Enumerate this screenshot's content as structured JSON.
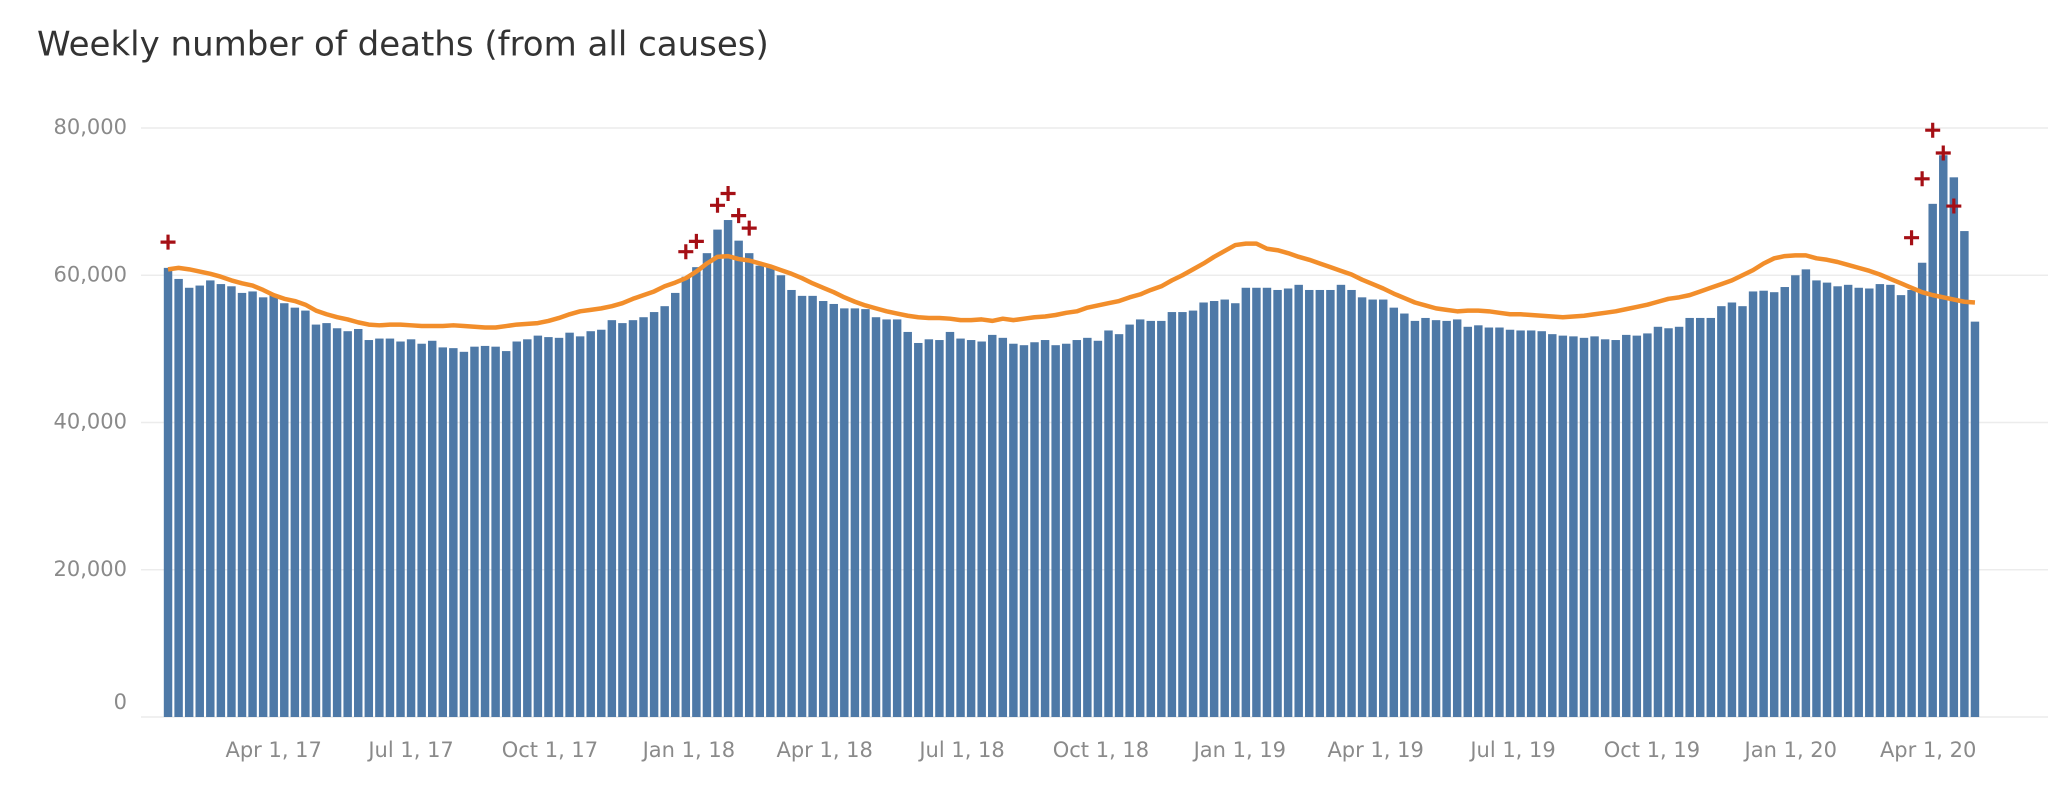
{
  "chart_data": {
    "type": "bar",
    "title": "Weekly number of deaths (from all causes)",
    "x": [
      "2017-01-21",
      "2017-01-28",
      "2017-02-04",
      "2017-02-11",
      "2017-02-18",
      "2017-02-25",
      "2017-03-04",
      "2017-03-11",
      "2017-03-18",
      "2017-03-25",
      "2017-04-01",
      "2017-04-08",
      "2017-04-15",
      "2017-04-22",
      "2017-04-29",
      "2017-05-06",
      "2017-05-13",
      "2017-05-20",
      "2017-05-27",
      "2017-06-03",
      "2017-06-10",
      "2017-06-17",
      "2017-06-24",
      "2017-07-01",
      "2017-07-08",
      "2017-07-15",
      "2017-07-22",
      "2017-07-29",
      "2017-08-05",
      "2017-08-12",
      "2017-08-19",
      "2017-08-26",
      "2017-09-02",
      "2017-09-09",
      "2017-09-16",
      "2017-09-23",
      "2017-09-30",
      "2017-10-07",
      "2017-10-14",
      "2017-10-21",
      "2017-10-28",
      "2017-11-04",
      "2017-11-11",
      "2017-11-18",
      "2017-11-25",
      "2017-12-02",
      "2017-12-09",
      "2017-12-16",
      "2017-12-23",
      "2017-12-30",
      "2018-01-06",
      "2018-01-13",
      "2018-01-20",
      "2018-01-27",
      "2018-02-03",
      "2018-02-10",
      "2018-02-17",
      "2018-02-24",
      "2018-03-03",
      "2018-03-10",
      "2018-03-17",
      "2018-03-24",
      "2018-03-31",
      "2018-04-07",
      "2018-04-14",
      "2018-04-21",
      "2018-04-28",
      "2018-05-05",
      "2018-05-12",
      "2018-05-19",
      "2018-05-26",
      "2018-06-02",
      "2018-06-09",
      "2018-06-16",
      "2018-06-23",
      "2018-06-30",
      "2018-07-07",
      "2018-07-14",
      "2018-07-21",
      "2018-07-28",
      "2018-08-04",
      "2018-08-11",
      "2018-08-18",
      "2018-08-25",
      "2018-09-01",
      "2018-09-08",
      "2018-09-15",
      "2018-09-22",
      "2018-09-29",
      "2018-10-06",
      "2018-10-13",
      "2018-10-20",
      "2018-10-27",
      "2018-11-03",
      "2018-11-10",
      "2018-11-17",
      "2018-11-24",
      "2018-12-01",
      "2018-12-08",
      "2018-12-15",
      "2018-12-22",
      "2018-12-29",
      "2019-01-05",
      "2019-01-12",
      "2019-01-19",
      "2019-01-26",
      "2019-02-02",
      "2019-02-09",
      "2019-02-16",
      "2019-02-23",
      "2019-03-02",
      "2019-03-09",
      "2019-03-16",
      "2019-03-23",
      "2019-03-30",
      "2019-04-06",
      "2019-04-13",
      "2019-04-20",
      "2019-04-27",
      "2019-05-04",
      "2019-05-11",
      "2019-05-18",
      "2019-05-25",
      "2019-06-01",
      "2019-06-08",
      "2019-06-15",
      "2019-06-22",
      "2019-06-29",
      "2019-07-06",
      "2019-07-13",
      "2019-07-20",
      "2019-07-27",
      "2019-08-03",
      "2019-08-10",
      "2019-08-17",
      "2019-08-24",
      "2019-08-31",
      "2019-09-07",
      "2019-09-14",
      "2019-09-21",
      "2019-09-28",
      "2019-10-05",
      "2019-10-12",
      "2019-10-19",
      "2019-10-26",
      "2019-11-02",
      "2019-11-09",
      "2019-11-16",
      "2019-11-23",
      "2019-11-30",
      "2019-12-07",
      "2019-12-14",
      "2019-12-21",
      "2019-12-28",
      "2020-01-04",
      "2020-01-11",
      "2020-01-18",
      "2020-01-25",
      "2020-02-01",
      "2020-02-08",
      "2020-02-15",
      "2020-02-22",
      "2020-02-29",
      "2020-03-07",
      "2020-03-14",
      "2020-03-21",
      "2020-03-28",
      "2020-04-04",
      "2020-04-11",
      "2020-04-18",
      "2020-04-25",
      "2020-05-02"
    ],
    "series": [
      {
        "type": "bar",
        "color": "#4e79a7",
        "values": [
          61000,
          59500,
          58300,
          58600,
          59300,
          58800,
          58500,
          57600,
          57800,
          57000,
          57300,
          56200,
          55600,
          55200,
          53300,
          53500,
          52800,
          52400,
          52700,
          51200,
          51400,
          51400,
          51000,
          51300,
          50700,
          51100,
          50200,
          50100,
          49600,
          50300,
          50400,
          50300,
          49700,
          51000,
          51300,
          51800,
          51600,
          51500,
          52200,
          51700,
          52400,
          52600,
          53900,
          53500,
          53900,
          54300,
          55000,
          55800,
          57600,
          59800,
          61100,
          63000,
          66200,
          67500,
          64700,
          63000,
          61300,
          61200,
          60000,
          58000,
          57200,
          57200,
          56500,
          56100,
          55500,
          55500,
          55400,
          54300,
          54000,
          54000,
          52300,
          50800,
          51300,
          51200,
          52300,
          51400,
          51200,
          51000,
          51900,
          51500,
          50700,
          50500,
          50900,
          51200,
          50500,
          50700,
          51200,
          51500,
          51100,
          52500,
          52000,
          53300,
          54000,
          53800,
          53800,
          55000,
          55000,
          55200,
          56300,
          56500,
          56700,
          56200,
          58300,
          58300,
          58300,
          58000,
          58200,
          58700,
          58000,
          58000,
          58000,
          58700,
          58000,
          57000,
          56700,
          56700,
          55600,
          54800,
          53800,
          54200,
          53900,
          53800,
          54000,
          53000,
          53200,
          52900,
          52900,
          52600,
          52500,
          52500,
          52400,
          52000,
          51800,
          51700,
          51500,
          51700,
          51300,
          51200,
          51900,
          51800,
          52100,
          53000,
          52800,
          53000,
          54200,
          54200,
          54200,
          55800,
          56300,
          55800,
          57800,
          57900,
          57700,
          58400,
          60000,
          60800,
          59300,
          59000,
          58500,
          58700,
          58300,
          58200,
          58800,
          58700,
          57300,
          58000,
          61700,
          69700,
          76300,
          73300,
          66000,
          53700
        ]
      },
      {
        "type": "line",
        "color": "#f28e2b",
        "values": [
          60800,
          61000,
          60800,
          60500,
          60200,
          59800,
          59300,
          58900,
          58600,
          58000,
          57300,
          56800,
          56500,
          56000,
          55200,
          54700,
          54300,
          54000,
          53600,
          53300,
          53200,
          53300,
          53300,
          53200,
          53100,
          53100,
          53100,
          53200,
          53100,
          53000,
          52900,
          52900,
          53100,
          53300,
          53400,
          53500,
          53800,
          54200,
          54700,
          55100,
          55300,
          55500,
          55800,
          56200,
          56800,
          57300,
          57800,
          58500,
          59000,
          59600,
          60500,
          61600,
          62500,
          62600,
          62200,
          62000,
          61600,
          61200,
          60700,
          60200,
          59600,
          58900,
          58300,
          57700,
          57000,
          56400,
          55900,
          55500,
          55100,
          54800,
          54500,
          54300,
          54200,
          54200,
          54100,
          53900,
          53900,
          54000,
          53800,
          54100,
          53900,
          54100,
          54300,
          54400,
          54600,
          54900,
          55100,
          55600,
          55900,
          56200,
          56500,
          57000,
          57400,
          58000,
          58500,
          59300,
          60000,
          60800,
          61600,
          62500,
          63300,
          64100,
          64300,
          64300,
          63600,
          63400,
          63000,
          62500,
          62100,
          61600,
          61100,
          60600,
          60100,
          59400,
          58800,
          58200,
          57500,
          56900,
          56300,
          55900,
          55500,
          55300,
          55100,
          55200,
          55200,
          55100,
          54900,
          54700,
          54700,
          54600,
          54500,
          54400,
          54300,
          54400,
          54500,
          54700,
          54900,
          55100,
          55400,
          55700,
          56000,
          56400,
          56800,
          57000,
          57300,
          57800,
          58300,
          58800,
          59300,
          60000,
          60700,
          61600,
          62300,
          62600,
          62700,
          62700,
          62300,
          62100,
          61800,
          61400,
          61000,
          60600,
          60100,
          59500,
          58900,
          58300,
          57700,
          57300,
          57000,
          56700,
          56400,
          56300
        ]
      },
      {
        "type": "scatter",
        "color": "#a50f15",
        "values": [
          64500,
          null,
          null,
          null,
          null,
          null,
          null,
          null,
          null,
          null,
          null,
          null,
          null,
          null,
          null,
          null,
          null,
          null,
          null,
          null,
          null,
          null,
          null,
          null,
          null,
          null,
          null,
          null,
          null,
          null,
          null,
          null,
          null,
          null,
          null,
          null,
          null,
          null,
          null,
          null,
          null,
          null,
          null,
          null,
          null,
          null,
          null,
          null,
          null,
          63200,
          64600,
          null,
          69500,
          71100,
          68100,
          66400,
          null,
          null,
          null,
          null,
          null,
          null,
          null,
          null,
          null,
          null,
          null,
          null,
          null,
          null,
          null,
          null,
          null,
          null,
          null,
          null,
          null,
          null,
          null,
          null,
          null,
          null,
          null,
          null,
          null,
          null,
          null,
          null,
          null,
          null,
          null,
          null,
          null,
          null,
          null,
          null,
          null,
          null,
          null,
          null,
          null,
          null,
          null,
          null,
          null,
          null,
          null,
          null,
          null,
          null,
          null,
          null,
          null,
          null,
          null,
          null,
          null,
          null,
          null,
          null,
          null,
          null,
          null,
          null,
          null,
          null,
          null,
          null,
          null,
          null,
          null,
          null,
          null,
          null,
          null,
          null,
          null,
          null,
          null,
          null,
          null,
          null,
          null,
          null,
          null,
          null,
          null,
          null,
          null,
          null,
          null,
          null,
          null,
          null,
          null,
          null,
          null,
          null,
          null,
          null,
          null,
          null,
          null,
          null,
          null,
          65100,
          73100,
          79700,
          76600,
          69400,
          null
        ]
      }
    ],
    "xlim": [
      "2017-01-17",
      "2020-05-06"
    ],
    "xticks": [
      {
        "value": "2017-04-01",
        "label": "Apr 1, 17"
      },
      {
        "value": "2017-07-01",
        "label": "Jul 1, 17"
      },
      {
        "value": "2017-10-01",
        "label": "Oct 1, 17"
      },
      {
        "value": "2018-01-01",
        "label": "Jan 1, 18"
      },
      {
        "value": "2018-04-01",
        "label": "Apr 1, 18"
      },
      {
        "value": "2018-07-01",
        "label": "Jul 1, 18"
      },
      {
        "value": "2018-10-01",
        "label": "Oct 1, 18"
      },
      {
        "value": "2019-01-01",
        "label": "Jan 1, 19"
      },
      {
        "value": "2019-04-01",
        "label": "Apr 1, 19"
      },
      {
        "value": "2019-07-01",
        "label": "Jul 1, 19"
      },
      {
        "value": "2019-10-01",
        "label": "Oct 1, 19"
      },
      {
        "value": "2020-01-01",
        "label": "Jan 1, 20"
      },
      {
        "value": "2020-04-01",
        "label": "Apr 1, 20"
      }
    ],
    "ylim": [
      0,
      80000
    ],
    "yticks": [
      0,
      {
        "value": 20000,
        "label": "20,000"
      },
      {
        "value": 40000,
        "label": "40,000"
      },
      {
        "value": 60000,
        "label": "60,000"
      },
      {
        "value": 80000,
        "label": "80,000"
      }
    ],
    "grid": true
  }
}
